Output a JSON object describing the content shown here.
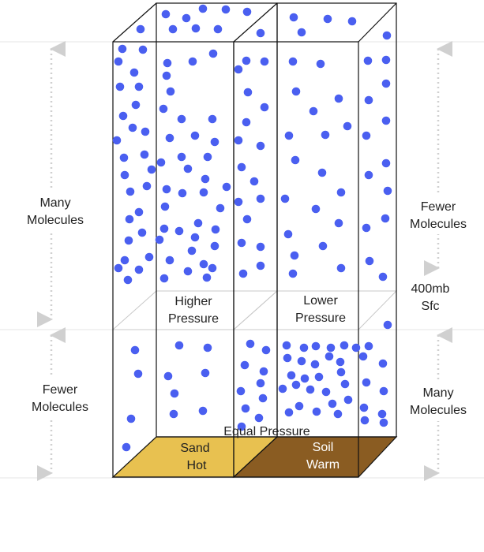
{
  "colors": {
    "molecule": "#4a5ff0",
    "sand": "#e8c150",
    "soil": "#8a5c22",
    "box_line": "#111111",
    "guide_line": "#bbbbbb",
    "arrow": "#d0d0d0"
  },
  "labels": {
    "left_top": [
      "Many",
      "Molecules"
    ],
    "left_bottom": [
      "Fewer",
      "Molecules"
    ],
    "right_top": [
      "Fewer",
      "Molecules"
    ],
    "right_bottom": [
      "Many",
      "Molecules"
    ],
    "level_400mb": [
      "400mb",
      "Sfc"
    ],
    "higher_pressure": [
      "Higher",
      "Pressure"
    ],
    "lower_pressure": [
      "Lower",
      "Pressure"
    ],
    "equal_pressure": "Equal Pressure",
    "sand": [
      "Sand",
      "Hot"
    ],
    "soil": [
      "Soil",
      "Warm"
    ]
  }
}
